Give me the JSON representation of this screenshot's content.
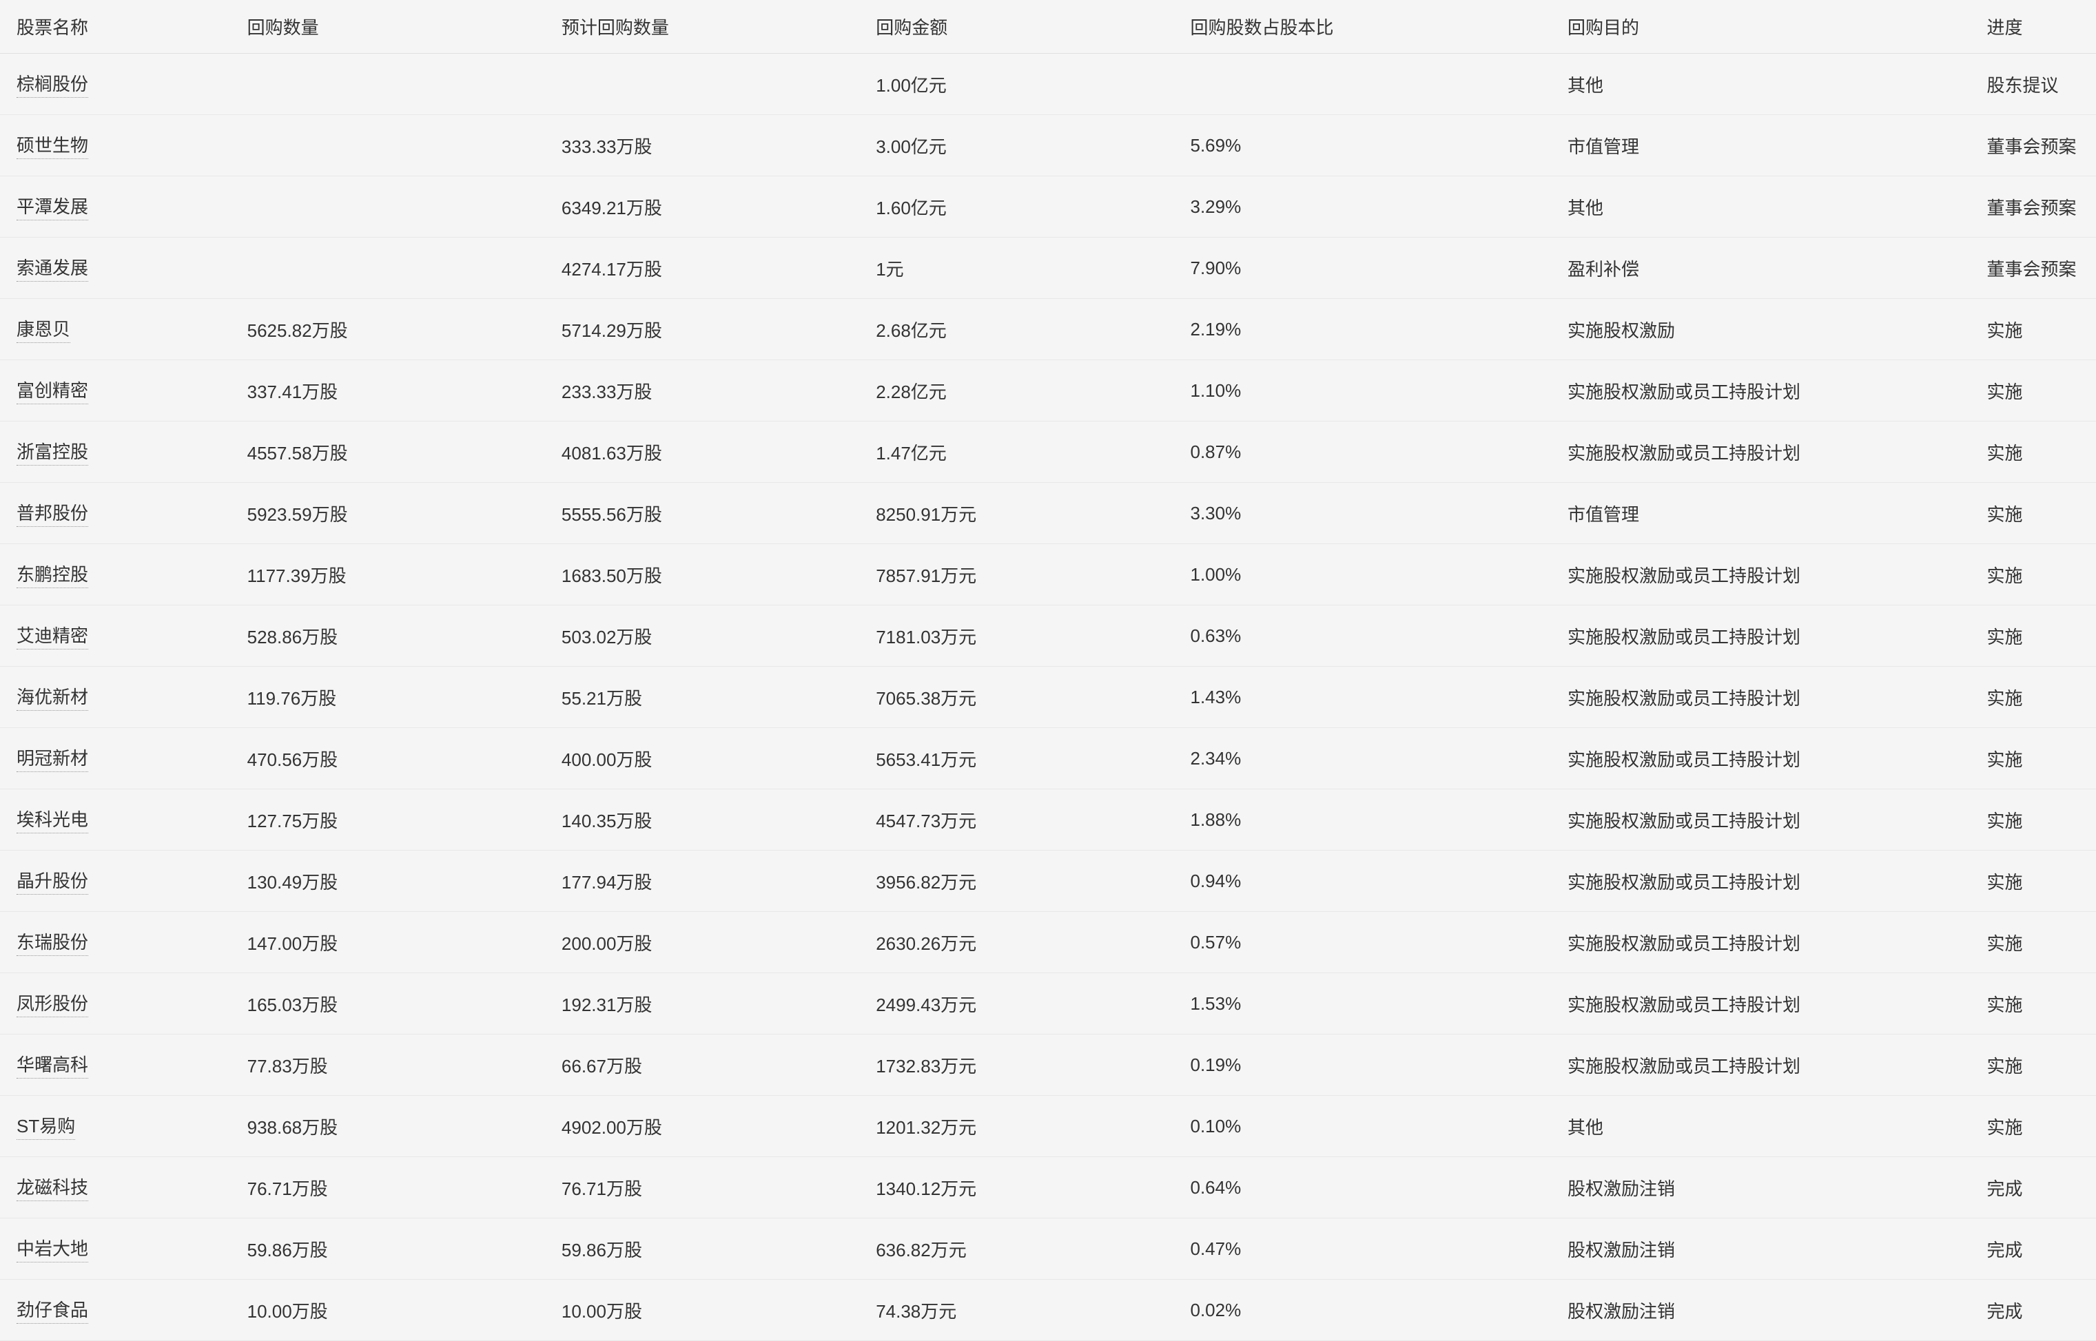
{
  "table": {
    "columns": [
      "股票名称",
      "回购数量",
      "预计回购数量",
      "回购金额",
      "回购股数占股本比",
      "回购目的",
      "进度"
    ],
    "rows": [
      [
        "棕榈股份",
        "",
        "",
        "1.00亿元",
        "",
        "其他",
        "股东提议"
      ],
      [
        "硕世生物",
        "",
        "333.33万股",
        "3.00亿元",
        "5.69%",
        "市值管理",
        "董事会预案"
      ],
      [
        "平潭发展",
        "",
        "6349.21万股",
        "1.60亿元",
        "3.29%",
        "其他",
        "董事会预案"
      ],
      [
        "索通发展",
        "",
        "4274.17万股",
        "1元",
        "7.90%",
        "盈利补偿",
        "董事会预案"
      ],
      [
        "康恩贝",
        "5625.82万股",
        "5714.29万股",
        "2.68亿元",
        "2.19%",
        "实施股权激励",
        "实施"
      ],
      [
        "富创精密",
        "337.41万股",
        "233.33万股",
        "2.28亿元",
        "1.10%",
        "实施股权激励或员工持股计划",
        "实施"
      ],
      [
        "浙富控股",
        "4557.58万股",
        "4081.63万股",
        "1.47亿元",
        "0.87%",
        "实施股权激励或员工持股计划",
        "实施"
      ],
      [
        "普邦股份",
        "5923.59万股",
        "5555.56万股",
        "8250.91万元",
        "3.30%",
        "市值管理",
        "实施"
      ],
      [
        "东鹏控股",
        "1177.39万股",
        "1683.50万股",
        "7857.91万元",
        "1.00%",
        "实施股权激励或员工持股计划",
        "实施"
      ],
      [
        "艾迪精密",
        "528.86万股",
        "503.02万股",
        "7181.03万元",
        "0.63%",
        "实施股权激励或员工持股计划",
        "实施"
      ],
      [
        "海优新材",
        "119.76万股",
        "55.21万股",
        "7065.38万元",
        "1.43%",
        "实施股权激励或员工持股计划",
        "实施"
      ],
      [
        "明冠新材",
        "470.56万股",
        "400.00万股",
        "5653.41万元",
        "2.34%",
        "实施股权激励或员工持股计划",
        "实施"
      ],
      [
        "埃科光电",
        "127.75万股",
        "140.35万股",
        "4547.73万元",
        "1.88%",
        "实施股权激励或员工持股计划",
        "实施"
      ],
      [
        "晶升股份",
        "130.49万股",
        "177.94万股",
        "3956.82万元",
        "0.94%",
        "实施股权激励或员工持股计划",
        "实施"
      ],
      [
        "东瑞股份",
        "147.00万股",
        "200.00万股",
        "2630.26万元",
        "0.57%",
        "实施股权激励或员工持股计划",
        "实施"
      ],
      [
        "凤形股份",
        "165.03万股",
        "192.31万股",
        "2499.43万元",
        "1.53%",
        "实施股权激励或员工持股计划",
        "实施"
      ],
      [
        "华曙高科",
        "77.83万股",
        "66.67万股",
        "1732.83万元",
        "0.19%",
        "实施股权激励或员工持股计划",
        "实施"
      ],
      [
        "ST易购",
        "938.68万股",
        "4902.00万股",
        "1201.32万元",
        "0.10%",
        "其他",
        "实施"
      ],
      [
        "龙磁科技",
        "76.71万股",
        "76.71万股",
        "1340.12万元",
        "0.64%",
        "股权激励注销",
        "完成"
      ],
      [
        "中岩大地",
        "59.86万股",
        "59.86万股",
        "636.82万元",
        "0.47%",
        "股权激励注销",
        "完成"
      ],
      [
        "劲仔食品",
        "10.00万股",
        "10.00万股",
        "74.38万元",
        "0.02%",
        "股权激励注销",
        "完成"
      ]
    ],
    "column_widths": [
      "11%",
      "15%",
      "15%",
      "15%",
      "18%",
      "20%",
      "6%"
    ],
    "background_color": "#f5f5f5",
    "border_color": "#e8e8e8",
    "text_color": "#333",
    "font_size": 26
  }
}
